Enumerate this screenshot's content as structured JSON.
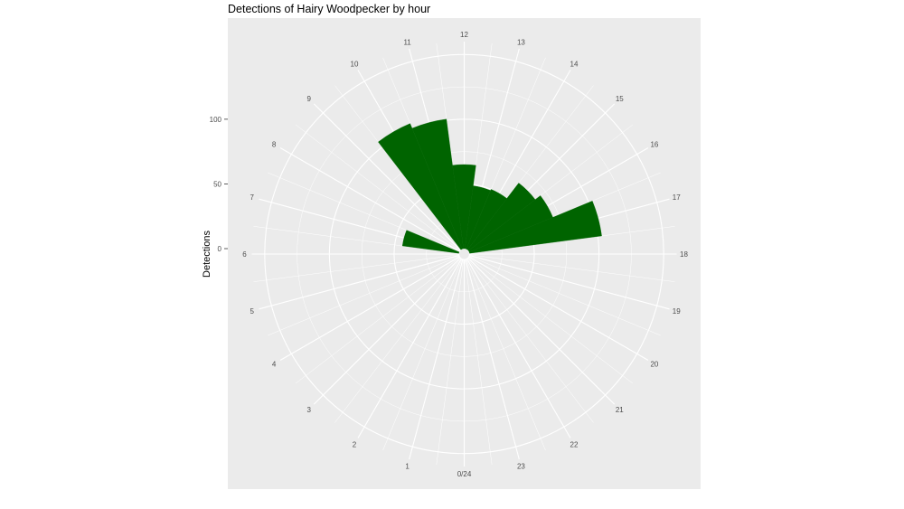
{
  "chart_data": {
    "type": "bar",
    "coord": "polar",
    "title": "Detections of Hairy Woodpecker by hour",
    "xlabel": "",
    "ylabel": "Detections",
    "categories": [
      "0/24",
      "1",
      "2",
      "3",
      "4",
      "5",
      "6",
      "7",
      "8",
      "9",
      "10",
      "11",
      "12",
      "13",
      "14",
      "15",
      "16",
      "17",
      "18",
      "19",
      "20",
      "21",
      "22",
      "23"
    ],
    "hours": [
      0,
      1,
      2,
      3,
      4,
      5,
      6,
      7,
      8,
      9,
      10,
      11,
      12,
      13,
      14,
      15,
      16,
      17,
      18,
      19,
      20,
      21,
      22,
      23
    ],
    "values": [
      0,
      0,
      0,
      0,
      0,
      0,
      0,
      44,
      0,
      0,
      105,
      101,
      65,
      49,
      50,
      65,
      70,
      103,
      0,
      0,
      0,
      0,
      0,
      0
    ],
    "ylim": [
      0,
      160
    ],
    "y_ticks": [
      0,
      50,
      100
    ],
    "grid": true,
    "legend": "none",
    "colors": {
      "bar": "#006400",
      "panel": "#ebebeb",
      "grid": "#ffffff"
    }
  }
}
